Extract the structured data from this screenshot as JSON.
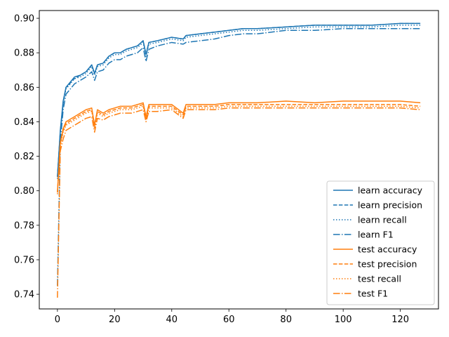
{
  "chart_data": {
    "type": "line",
    "title": "",
    "xlabel": "",
    "ylabel": "",
    "xlim": [
      -6.35,
      133.35
    ],
    "ylim": [
      0.7315,
      0.9045
    ],
    "xticks": [
      0,
      20,
      40,
      60,
      80,
      100,
      120
    ],
    "xtick_labels": [
      "0",
      "20",
      "40",
      "60",
      "80",
      "100",
      "120"
    ],
    "yticks": [
      0.74,
      0.76,
      0.78,
      0.8,
      0.82,
      0.84,
      0.86,
      0.88,
      0.9
    ],
    "ytick_labels": [
      "0.74",
      "0.76",
      "0.78",
      "0.80",
      "0.82",
      "0.84",
      "0.86",
      "0.88",
      "0.90"
    ],
    "grid": false,
    "legend_position": "lower-right",
    "colors": {
      "learn": "#1f77b4",
      "test": "#ff7f0e"
    },
    "x": [
      0,
      1,
      2,
      3,
      4,
      5,
      6,
      8,
      10,
      12,
      13,
      14,
      16,
      18,
      20,
      22,
      24,
      26,
      28,
      30,
      31,
      32,
      35,
      40,
      44,
      45,
      50,
      55,
      60,
      65,
      70,
      80,
      90,
      100,
      110,
      120,
      127
    ],
    "series": [
      {
        "name": "learn accuracy",
        "group": "learn",
        "dash": "solid",
        "values": [
          0.808,
          0.835,
          0.852,
          0.86,
          0.862,
          0.864,
          0.866,
          0.867,
          0.869,
          0.873,
          0.868,
          0.873,
          0.874,
          0.878,
          0.88,
          0.88,
          0.882,
          0.883,
          0.884,
          0.887,
          0.879,
          0.886,
          0.887,
          0.889,
          0.888,
          0.89,
          0.891,
          0.892,
          0.893,
          0.894,
          0.894,
          0.895,
          0.896,
          0.896,
          0.896,
          0.897,
          0.897
        ]
      },
      {
        "name": "learn precision",
        "group": "learn",
        "dash": "dashed",
        "values": [
          0.808,
          0.834,
          0.851,
          0.86,
          0.861,
          0.864,
          0.865,
          0.867,
          0.869,
          0.873,
          0.868,
          0.873,
          0.874,
          0.878,
          0.88,
          0.88,
          0.882,
          0.883,
          0.884,
          0.887,
          0.879,
          0.886,
          0.887,
          0.889,
          0.888,
          0.89,
          0.891,
          0.892,
          0.893,
          0.894,
          0.894,
          0.895,
          0.896,
          0.896,
          0.896,
          0.897,
          0.897
        ]
      },
      {
        "name": "learn recall",
        "group": "learn",
        "dash": "dotted",
        "values": [
          0.807,
          0.834,
          0.851,
          0.859,
          0.861,
          0.863,
          0.865,
          0.866,
          0.868,
          0.872,
          0.867,
          0.872,
          0.873,
          0.877,
          0.879,
          0.879,
          0.881,
          0.882,
          0.883,
          0.886,
          0.878,
          0.885,
          0.886,
          0.888,
          0.887,
          0.889,
          0.89,
          0.891,
          0.892,
          0.893,
          0.893,
          0.894,
          0.895,
          0.895,
          0.895,
          0.896,
          0.896
        ]
      },
      {
        "name": "learn F1",
        "group": "learn",
        "dash": "dashdot",
        "values": [
          0.745,
          0.828,
          0.847,
          0.856,
          0.858,
          0.86,
          0.862,
          0.864,
          0.866,
          0.869,
          0.864,
          0.869,
          0.87,
          0.874,
          0.876,
          0.876,
          0.878,
          0.879,
          0.88,
          0.883,
          0.875,
          0.882,
          0.884,
          0.886,
          0.885,
          0.886,
          0.887,
          0.888,
          0.89,
          0.891,
          0.891,
          0.893,
          0.893,
          0.894,
          0.894,
          0.894,
          0.894
        ]
      },
      {
        "name": "test accuracy",
        "group": "test",
        "dash": "solid",
        "values": [
          0.799,
          0.828,
          0.836,
          0.84,
          0.841,
          0.842,
          0.843,
          0.845,
          0.847,
          0.848,
          0.838,
          0.847,
          0.845,
          0.847,
          0.848,
          0.849,
          0.849,
          0.849,
          0.85,
          0.851,
          0.843,
          0.85,
          0.85,
          0.85,
          0.845,
          0.85,
          0.85,
          0.85,
          0.851,
          0.851,
          0.851,
          0.852,
          0.851,
          0.852,
          0.852,
          0.852,
          0.851
        ]
      },
      {
        "name": "test precision",
        "group": "test",
        "dash": "dashed",
        "values": [
          0.799,
          0.827,
          0.835,
          0.839,
          0.84,
          0.841,
          0.842,
          0.844,
          0.846,
          0.847,
          0.837,
          0.846,
          0.844,
          0.846,
          0.847,
          0.848,
          0.848,
          0.848,
          0.849,
          0.85,
          0.842,
          0.849,
          0.849,
          0.849,
          0.844,
          0.849,
          0.849,
          0.849,
          0.85,
          0.85,
          0.85,
          0.85,
          0.85,
          0.85,
          0.85,
          0.85,
          0.849
        ]
      },
      {
        "name": "test recall",
        "group": "test",
        "dash": "dotted",
        "values": [
          0.798,
          0.826,
          0.834,
          0.838,
          0.839,
          0.84,
          0.841,
          0.843,
          0.845,
          0.846,
          0.836,
          0.845,
          0.843,
          0.845,
          0.846,
          0.847,
          0.847,
          0.847,
          0.848,
          0.849,
          0.841,
          0.848,
          0.848,
          0.848,
          0.843,
          0.848,
          0.848,
          0.848,
          0.849,
          0.849,
          0.849,
          0.849,
          0.849,
          0.849,
          0.849,
          0.849,
          0.848
        ]
      },
      {
        "name": "test F1",
        "group": "test",
        "dash": "dashdot",
        "values": [
          0.738,
          0.823,
          0.83,
          0.835,
          0.836,
          0.837,
          0.838,
          0.84,
          0.842,
          0.843,
          0.834,
          0.842,
          0.841,
          0.843,
          0.844,
          0.845,
          0.845,
          0.845,
          0.846,
          0.847,
          0.84,
          0.846,
          0.846,
          0.847,
          0.842,
          0.847,
          0.847,
          0.847,
          0.848,
          0.848,
          0.848,
          0.848,
          0.848,
          0.848,
          0.848,
          0.848,
          0.847
        ]
      }
    ]
  }
}
